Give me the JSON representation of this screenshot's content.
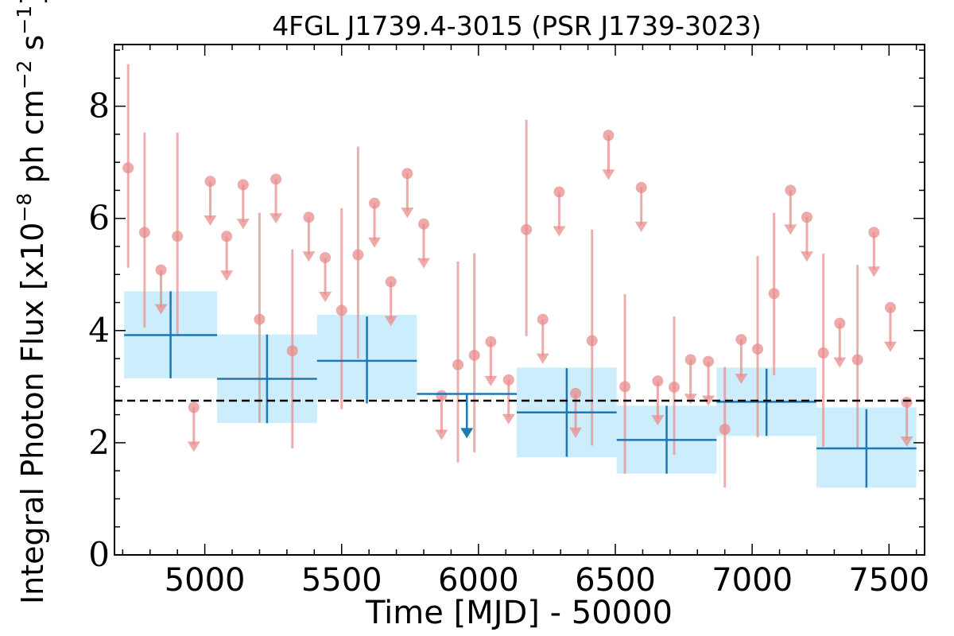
{
  "chart_data": {
    "type": "scatter",
    "title": "4FGL J1739.4-3015 (PSR J1739-3023)",
    "xlabel": "Time [MJD] - 50000",
    "ylabel": "Integral Photon Flux [x10",
    "ylabel_exp1": "−8",
    "ylabel_mid": " ph cm",
    "ylabel_exp2": "−2",
    "ylabel_mid2": " s",
    "ylabel_exp3": "−1",
    "ylabel_end": "]",
    "xlim": [
      4670,
      7630
    ],
    "ylim": [
      0,
      9.1
    ],
    "xticks": [
      "5000",
      "5500",
      "6000",
      "6500",
      "7000",
      "7500"
    ],
    "yticks": [
      "0",
      "2",
      "4",
      "6",
      "8"
    ],
    "reference_line": 2.75,
    "colors": {
      "fine": "#e88c8c",
      "coarse": "#1f77b4",
      "band": "#cceefc",
      "reference": "#000000"
    },
    "coarse_bins": [
      {
        "x0": 4705,
        "x1": 5045,
        "y": 3.92,
        "ylo": 3.15,
        "yhi": 4.7,
        "band_lo": 3.15,
        "band_hi": 4.7,
        "ul": false
      },
      {
        "x0": 5045,
        "x1": 5410,
        "y": 3.14,
        "ylo": 2.35,
        "yhi": 3.93,
        "band_lo": 2.35,
        "band_hi": 3.93,
        "ul": false
      },
      {
        "x0": 5410,
        "x1": 5775,
        "y": 3.46,
        "ylo": 2.7,
        "yhi": 4.25,
        "band_lo": 2.78,
        "band_hi": 4.28,
        "ul": false
      },
      {
        "x0": 5775,
        "x1": 6140,
        "y": 2.87,
        "ul": true
      },
      {
        "x0": 6140,
        "x1": 6505,
        "y": 2.54,
        "ylo": 1.75,
        "yhi": 3.33,
        "band_lo": 1.74,
        "band_hi": 3.34,
        "ul": false
      },
      {
        "x0": 6505,
        "x1": 6870,
        "y": 2.05,
        "ylo": 1.45,
        "yhi": 2.66,
        "band_lo": 1.45,
        "band_hi": 2.66,
        "ul": false
      },
      {
        "x0": 6870,
        "x1": 7235,
        "y": 2.73,
        "ylo": 2.12,
        "yhi": 3.32,
        "band_lo": 2.12,
        "band_hi": 3.34,
        "ul": false
      },
      {
        "x0": 7235,
        "x1": 7600,
        "y": 1.9,
        "ylo": 1.2,
        "yhi": 2.6,
        "band_lo": 1.2,
        "band_hi": 2.63,
        "ul": false
      }
    ],
    "fine_points": [
      {
        "x": 4720,
        "y": 6.9,
        "ylo": 5.12,
        "yhi": 8.75,
        "ul": false
      },
      {
        "x": 4780,
        "y": 5.75,
        "ylo": 4.05,
        "yhi": 7.53,
        "ul": false
      },
      {
        "x": 4840,
        "y": 5.08,
        "ul": true
      },
      {
        "x": 4900,
        "y": 5.68,
        "ylo": 3.9,
        "yhi": 7.53,
        "ul": false
      },
      {
        "x": 4960,
        "y": 2.63,
        "ul": true
      },
      {
        "x": 5020,
        "y": 6.66,
        "ul": true
      },
      {
        "x": 5080,
        "y": 5.68,
        "ul": true
      },
      {
        "x": 5140,
        "y": 6.6,
        "ul": true
      },
      {
        "x": 5200,
        "y": 4.2,
        "ylo": 2.36,
        "yhi": 6.1,
        "ul": false
      },
      {
        "x": 5260,
        "y": 6.7,
        "ul": true
      },
      {
        "x": 5320,
        "y": 3.64,
        "ylo": 1.9,
        "yhi": 5.45,
        "ul": false
      },
      {
        "x": 5380,
        "y": 6.02,
        "ul": true
      },
      {
        "x": 5440,
        "y": 5.3,
        "ul": true
      },
      {
        "x": 5500,
        "y": 4.36,
        "ylo": 2.6,
        "yhi": 6.18,
        "ul": false
      },
      {
        "x": 5560,
        "y": 5.35,
        "ylo": 3.5,
        "yhi": 7.28,
        "ul": false
      },
      {
        "x": 5620,
        "y": 6.27,
        "ul": true
      },
      {
        "x": 5680,
        "y": 4.87,
        "ul": true
      },
      {
        "x": 5740,
        "y": 6.8,
        "ul": true
      },
      {
        "x": 5800,
        "y": 5.9,
        "ul": true
      },
      {
        "x": 5865,
        "y": 2.84,
        "ul": true
      },
      {
        "x": 5925,
        "y": 3.39,
        "ylo": 1.65,
        "yhi": 5.23,
        "ul": false
      },
      {
        "x": 5985,
        "y": 3.56,
        "ylo": 1.83,
        "yhi": 5.38,
        "ul": false
      },
      {
        "x": 6045,
        "y": 3.8,
        "ul": true
      },
      {
        "x": 6110,
        "y": 3.12,
        "ul": true
      },
      {
        "x": 6175,
        "y": 5.8,
        "ylo": 3.9,
        "yhi": 7.76,
        "ul": false
      },
      {
        "x": 6235,
        "y": 4.2,
        "ul": true
      },
      {
        "x": 6295,
        "y": 6.47,
        "ul": true
      },
      {
        "x": 6355,
        "y": 2.88,
        "ul": true
      },
      {
        "x": 6415,
        "y": 3.82,
        "ylo": 1.95,
        "yhi": 5.8,
        "ul": false
      },
      {
        "x": 6475,
        "y": 7.48,
        "ul": true
      },
      {
        "x": 6535,
        "y": 3.0,
        "ylo": 1.45,
        "yhi": 4.65,
        "ul": false
      },
      {
        "x": 6595,
        "y": 6.55,
        "ul": true
      },
      {
        "x": 6655,
        "y": 3.1,
        "ul": true
      },
      {
        "x": 6715,
        "y": 2.99,
        "ylo": 1.78,
        "yhi": 4.25,
        "ul": false
      },
      {
        "x": 6775,
        "y": 3.48,
        "ul": true
      },
      {
        "x": 6840,
        "y": 3.45,
        "ul": true
      },
      {
        "x": 6900,
        "y": 2.24,
        "ylo": 1.2,
        "yhi": 3.35,
        "ul": false
      },
      {
        "x": 6960,
        "y": 3.84,
        "ul": true
      },
      {
        "x": 7020,
        "y": 3.67,
        "ylo": 2.1,
        "yhi": 5.33,
        "ul": false
      },
      {
        "x": 7080,
        "y": 4.66,
        "ylo": 3.2,
        "yhi": 6.1,
        "ul": false
      },
      {
        "x": 7140,
        "y": 6.5,
        "ul": true
      },
      {
        "x": 7200,
        "y": 6.02,
        "ul": true
      },
      {
        "x": 7260,
        "y": 3.6,
        "ylo": 1.93,
        "yhi": 5.37,
        "ul": false
      },
      {
        "x": 7320,
        "y": 4.13,
        "ul": true
      },
      {
        "x": 7385,
        "y": 3.48,
        "ylo": 1.9,
        "yhi": 5.17,
        "ul": false
      },
      {
        "x": 7445,
        "y": 5.75,
        "ul": true
      },
      {
        "x": 7505,
        "y": 4.41,
        "ul": true
      },
      {
        "x": 7565,
        "y": 2.72,
        "ul": true
      }
    ]
  }
}
